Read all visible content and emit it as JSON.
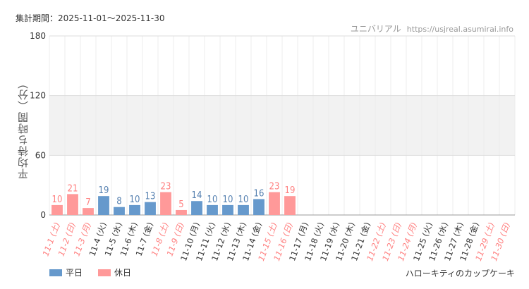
{
  "header": {
    "period": "集計期間：2025-11-01～2025-11-30",
    "credit_name": "ユニバリアル",
    "credit_site": "https://usjreal.asumirai.info"
  },
  "menu_name": "ハローキティのカップケーキ",
  "colors": {
    "weekday": "#6699cc",
    "holiday": "#ff9999",
    "holiday_text": "#ff8080",
    "weekday_text": "#5580b0"
  },
  "chart_data": {
    "type": "bar",
    "ylabel": "平均待ち時間（分）",
    "ylim": [
      0,
      180
    ],
    "yticks": [
      0,
      60,
      120,
      180
    ],
    "grid": true,
    "legend_position": "bottom-left",
    "series": [
      {
        "name": "平日",
        "color": "#6699cc"
      },
      {
        "name": "休日",
        "color": "#ff9999"
      }
    ],
    "categories": [
      "11-1 (土)",
      "11-2 (日)",
      "11-3 (月)",
      "11-4 (火)",
      "11-5 (水)",
      "11-6 (木)",
      "11-7 (金)",
      "11-8 (土)",
      "11-9 (日)",
      "11-10 (月)",
      "11-11 (火)",
      "11-12 (水)",
      "11-13 (木)",
      "11-14 (金)",
      "11-15 (土)",
      "11-16 (日)",
      "11-17 (月)",
      "11-18 (火)",
      "11-19 (水)",
      "11-20 (木)",
      "11-21 (金)",
      "11-22 (土)",
      "11-23 (日)",
      "11-24 (月)",
      "11-25 (火)",
      "11-26 (水)",
      "11-27 (木)",
      "11-28 (金)",
      "11-29 (土)",
      "11-30 (日)"
    ],
    "values": [
      10,
      21,
      7,
      19,
      8,
      10,
      13,
      23,
      5,
      14,
      10,
      10,
      10,
      16,
      23,
      19,
      null,
      null,
      null,
      null,
      null,
      null,
      null,
      null,
      null,
      null,
      null,
      null,
      null,
      null
    ],
    "day_type": [
      "holiday",
      "holiday",
      "holiday",
      "weekday",
      "weekday",
      "weekday",
      "weekday",
      "holiday",
      "holiday",
      "weekday",
      "weekday",
      "weekday",
      "weekday",
      "weekday",
      "holiday",
      "holiday",
      "weekday",
      "weekday",
      "weekday",
      "weekday",
      "weekday",
      "holiday",
      "holiday",
      "holiday",
      "weekday",
      "weekday",
      "weekday",
      "weekday",
      "holiday",
      "holiday"
    ]
  }
}
